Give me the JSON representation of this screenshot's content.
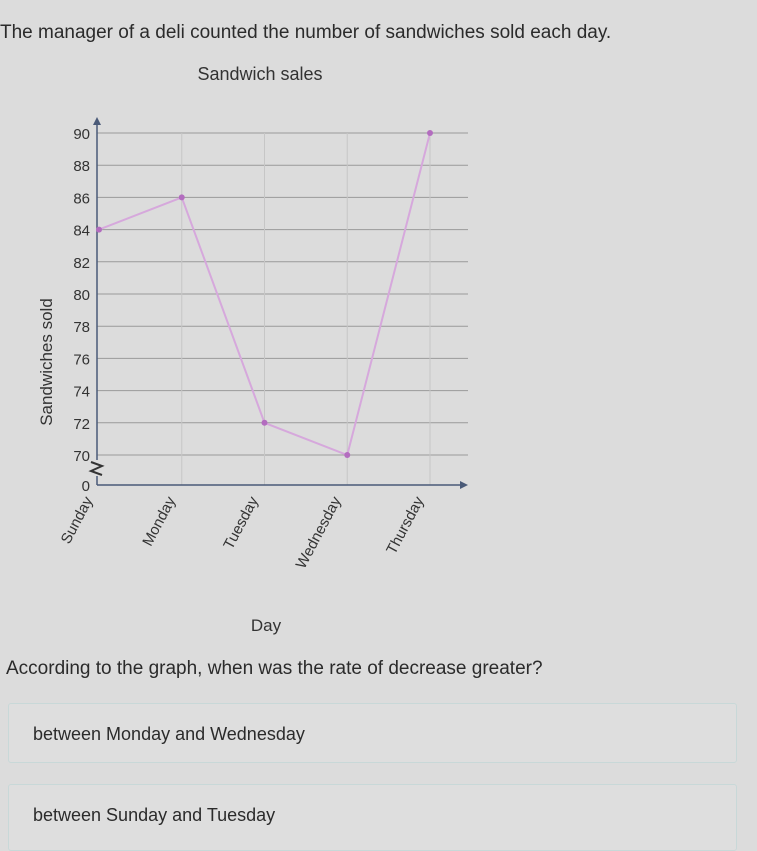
{
  "prompt": "The manager of a deli counted the number of sandwiches sold each day.",
  "question": "According to the graph, when was the rate of decrease greater?",
  "choices": [
    "between Monday and Wednesday",
    "between Sunday and Tuesday"
  ],
  "colors": {
    "line": "#d6a8dc",
    "point": "#b36cbf",
    "grid": "#9a9a9a",
    "axis": "#4a5a78"
  },
  "chart_data": {
    "type": "line",
    "title": "Sandwich sales",
    "xlabel": "Day",
    "ylabel": "Sandwiches sold",
    "categories": [
      "Sunday",
      "Monday",
      "Tuesday",
      "Wednesday",
      "Thursday"
    ],
    "values": [
      84,
      86,
      72,
      70,
      90
    ],
    "yticks": [
      0,
      70,
      72,
      74,
      76,
      78,
      80,
      82,
      84,
      86,
      88,
      90
    ],
    "ylim": [
      70,
      90
    ],
    "axis_break": true,
    "grid": true,
    "legend": "none"
  }
}
